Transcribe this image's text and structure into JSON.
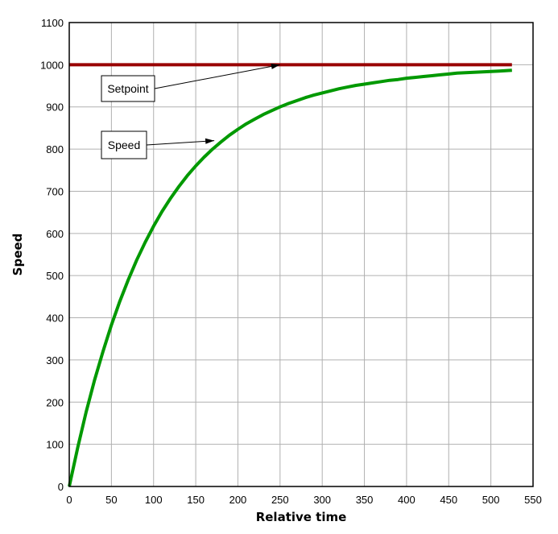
{
  "chart_data": {
    "type": "line",
    "title": "",
    "xlabel": "Relative time",
    "ylabel": "Speed",
    "xlim": [
      0,
      550
    ],
    "ylim": [
      0,
      1100
    ],
    "xticks": [
      0,
      50,
      100,
      150,
      200,
      250,
      300,
      350,
      400,
      450,
      500,
      550
    ],
    "yticks": [
      0,
      100,
      200,
      300,
      400,
      500,
      600,
      700,
      800,
      900,
      1000,
      1100
    ],
    "grid": true,
    "legend": "none",
    "series": [
      {
        "name": "Setpoint",
        "color": "#990000",
        "x": [
          0,
          525
        ],
        "y": [
          1000,
          1000
        ]
      },
      {
        "name": "Speed",
        "color": "#009900",
        "x": [
          0,
          10,
          20,
          30,
          40,
          50,
          60,
          70,
          80,
          90,
          100,
          110,
          120,
          130,
          140,
          150,
          160,
          170,
          180,
          190,
          200,
          210,
          220,
          230,
          240,
          250,
          260,
          270,
          280,
          290,
          300,
          310,
          320,
          330,
          340,
          350,
          360,
          370,
          380,
          390,
          400,
          410,
          420,
          430,
          440,
          450,
          460,
          470,
          480,
          490,
          500,
          510,
          525
        ],
        "y": [
          0,
          92,
          176,
          252,
          320,
          383,
          439,
          490,
          537,
          579,
          617,
          652,
          683,
          711,
          737,
          760,
          781,
          800,
          817,
          833,
          847,
          860,
          871,
          882,
          891,
          900,
          908,
          915,
          922,
          928,
          933,
          938,
          943,
          947,
          951,
          954,
          957,
          960,
          963,
          965,
          968,
          970,
          972,
          974,
          976,
          978,
          980,
          981,
          982,
          983,
          984,
          985,
          987
        ]
      }
    ],
    "annotations": [
      {
        "text": "Setpoint",
        "points_to": {
          "x": 250,
          "y": 1000
        }
      },
      {
        "text": "Speed",
        "points_to": {
          "x": 172,
          "y": 820
        }
      }
    ]
  }
}
